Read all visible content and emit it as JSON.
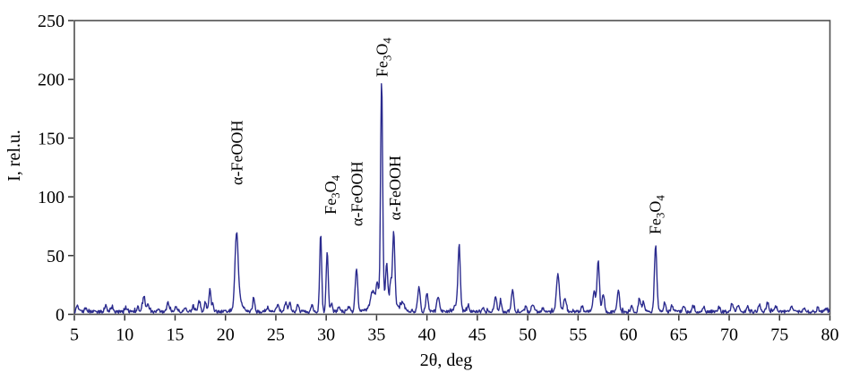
{
  "chart_data": {
    "type": "line",
    "title": "",
    "xlabel": "2θ, deg",
    "ylabel": "I, rel.u.",
    "xlim": [
      5,
      80
    ],
    "ylim": [
      0,
      250
    ],
    "x_ticks": [
      5,
      10,
      15,
      20,
      25,
      30,
      35,
      40,
      45,
      50,
      55,
      60,
      65,
      70,
      75,
      80
    ],
    "y_ticks": [
      0,
      50,
      100,
      150,
      200,
      250
    ],
    "grid": false,
    "legend": false,
    "line_color": "#2b2b8e",
    "axis_color": "#4f4f4f",
    "tick_color": "#333333",
    "baseline": {
      "level": 0.9,
      "noise_amplitude": 2.6,
      "spike_threshold": 0.88,
      "spike_gain": 20
    },
    "sample_step": 0.06,
    "peaks_format": [
      "two_theta_deg",
      "amplitude_rel_u",
      "sigma_deg"
    ],
    "peaks": [
      [
        5.3,
        5,
        0.1
      ],
      [
        6.1,
        3,
        0.1
      ],
      [
        8.1,
        5,
        0.12
      ],
      [
        8.7,
        4,
        0.1
      ],
      [
        10.2,
        3,
        0.1
      ],
      [
        11.3,
        4,
        0.1
      ],
      [
        11.9,
        12,
        0.14
      ],
      [
        12.3,
        6,
        0.1
      ],
      [
        13.3,
        3,
        0.1
      ],
      [
        14.3,
        8,
        0.12
      ],
      [
        15.1,
        5,
        0.1
      ],
      [
        16.0,
        4,
        0.1
      ],
      [
        16.8,
        5,
        0.1
      ],
      [
        17.4,
        9,
        0.12
      ],
      [
        18.0,
        8,
        0.1
      ],
      [
        18.45,
        19,
        0.1
      ],
      [
        18.75,
        7,
        0.08
      ],
      [
        21.1,
        58,
        0.15
      ],
      [
        21.3,
        12,
        0.32
      ],
      [
        22.8,
        12,
        0.1
      ],
      [
        24.2,
        4,
        0.1
      ],
      [
        25.2,
        7,
        0.12
      ],
      [
        26.0,
        8,
        0.12
      ],
      [
        26.4,
        7,
        0.1
      ],
      [
        27.2,
        6,
        0.1
      ],
      [
        28.6,
        6,
        0.1
      ],
      [
        29.45,
        65,
        0.1
      ],
      [
        30.1,
        52,
        0.1
      ],
      [
        30.5,
        7,
        0.1
      ],
      [
        31.3,
        4,
        0.1
      ],
      [
        32.3,
        5,
        0.1
      ],
      [
        33.0,
        37,
        0.12
      ],
      [
        34.6,
        12,
        0.2
      ],
      [
        35.05,
        16,
        0.1
      ],
      [
        35.5,
        185,
        0.1
      ],
      [
        35.8,
        13,
        0.9
      ],
      [
        36.0,
        30,
        0.09
      ],
      [
        36.4,
        16,
        0.08
      ],
      [
        36.7,
        60,
        0.11
      ],
      [
        37.6,
        7,
        0.15
      ],
      [
        39.2,
        21,
        0.12
      ],
      [
        40.0,
        15,
        0.12
      ],
      [
        41.1,
        13,
        0.12
      ],
      [
        43.0,
        7,
        0.25
      ],
      [
        43.2,
        52,
        0.11
      ],
      [
        44.1,
        6,
        0.1
      ],
      [
        45.6,
        3,
        0.1
      ],
      [
        46.8,
        13,
        0.12
      ],
      [
        47.3,
        9,
        0.1
      ],
      [
        48.5,
        19,
        0.12
      ],
      [
        49.8,
        4,
        0.1
      ],
      [
        50.5,
        7,
        0.12
      ],
      [
        51.5,
        3,
        0.1
      ],
      [
        53.0,
        31,
        0.15
      ],
      [
        53.7,
        12,
        0.12
      ],
      [
        55.4,
        5,
        0.1
      ],
      [
        56.6,
        17,
        0.12
      ],
      [
        57.0,
        43,
        0.12
      ],
      [
        57.5,
        15,
        0.12
      ],
      [
        59.0,
        19,
        0.11
      ],
      [
        60.3,
        5,
        0.1
      ],
      [
        61.1,
        12,
        0.11
      ],
      [
        61.5,
        9,
        0.1
      ],
      [
        62.7,
        56,
        0.12
      ],
      [
        63.6,
        8,
        0.1
      ],
      [
        64.3,
        5,
        0.1
      ],
      [
        65.5,
        5,
        0.1
      ],
      [
        66.4,
        5,
        0.1
      ],
      [
        67.5,
        4,
        0.1
      ],
      [
        69.0,
        4,
        0.1
      ],
      [
        70.3,
        6,
        0.12
      ],
      [
        70.9,
        6,
        0.12
      ],
      [
        71.8,
        5,
        0.1
      ],
      [
        73.0,
        5,
        0.12
      ],
      [
        73.8,
        8,
        0.12
      ],
      [
        74.6,
        5,
        0.1
      ],
      [
        76.2,
        4,
        0.1
      ],
      [
        77.5,
        3,
        0.1
      ],
      [
        78.8,
        4,
        0.1
      ],
      [
        79.6,
        3,
        0.1
      ]
    ],
    "annotations": [
      {
        "text": "α-FeOOH",
        "x": 21.1,
        "label_y": 110,
        "subscript_digits": false
      },
      {
        "text": "Fe3O4",
        "x": 30.4,
        "label_y": 85,
        "subscript_digits": true
      },
      {
        "text": "α-FeOOH",
        "x": 33.0,
        "label_y": 75,
        "subscript_digits": false
      },
      {
        "text": "Fe3O4",
        "x": 35.5,
        "label_y": 202,
        "subscript_digits": true
      },
      {
        "text": "α-FeOOH",
        "x": 36.8,
        "label_y": 80,
        "subscript_digits": false
      },
      {
        "text": "Fe3O4",
        "x": 62.6,
        "label_y": 68,
        "subscript_digits": true
      }
    ]
  }
}
